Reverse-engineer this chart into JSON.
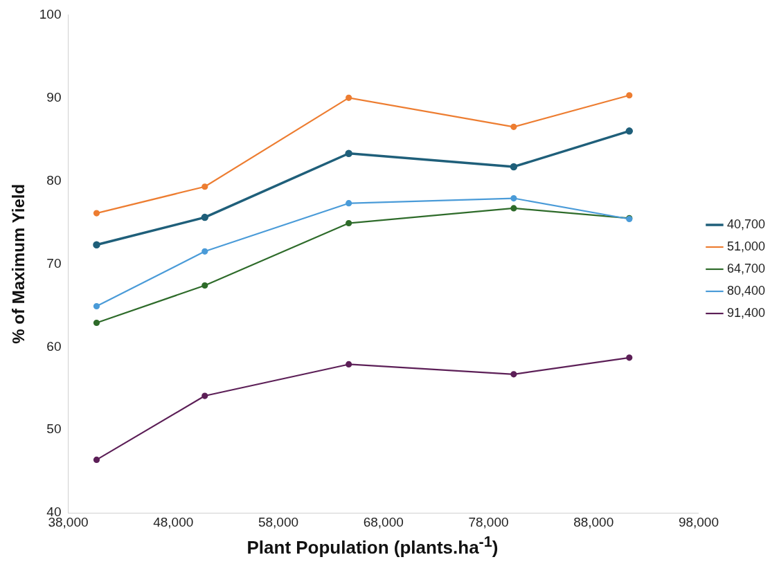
{
  "chart_data": {
    "type": "line",
    "xlabel": "Plant Population (plants.ha$^{-1}$)",
    "ylabel": "% of Maximum Yield",
    "x": [
      40700,
      51000,
      64700,
      80400,
      91400
    ],
    "xlim": [
      38000,
      98000
    ],
    "xticks": [
      {
        "value": 38000,
        "label": "38,000"
      },
      {
        "value": 48000,
        "label": "48,000"
      },
      {
        "value": 58000,
        "label": "58,000"
      },
      {
        "value": 68000,
        "label": "68,000"
      },
      {
        "value": 78000,
        "label": "78,000"
      },
      {
        "value": 88000,
        "label": "88,000"
      },
      {
        "value": 98000,
        "label": "98,000"
      }
    ],
    "ylim": [
      40,
      100
    ],
    "yticks": [
      40,
      50,
      60,
      70,
      80,
      90,
      100
    ],
    "grid": false,
    "legend": "right",
    "marker": "circle",
    "line_style": "solid",
    "series": [
      {
        "name": "40,700",
        "color": "#1f5f7a",
        "values": [
          72.3,
          75.6,
          83.3,
          81.7,
          86.0
        ]
      },
      {
        "name": "51,000",
        "color": "#ed7d31",
        "values": [
          76.1,
          79.3,
          90.0,
          86.5,
          90.3
        ]
      },
      {
        "name": "64,700",
        "color": "#2e6b2a",
        "values": [
          62.9,
          67.4,
          74.9,
          76.7,
          75.5
        ]
      },
      {
        "name": "80,400",
        "color": "#4a9bd8",
        "values": [
          64.9,
          71.5,
          77.3,
          77.9,
          75.4
        ]
      },
      {
        "name": "91,400",
        "color": "#5c1f57",
        "values": [
          46.4,
          54.1,
          57.9,
          56.7,
          58.7
        ]
      }
    ]
  }
}
